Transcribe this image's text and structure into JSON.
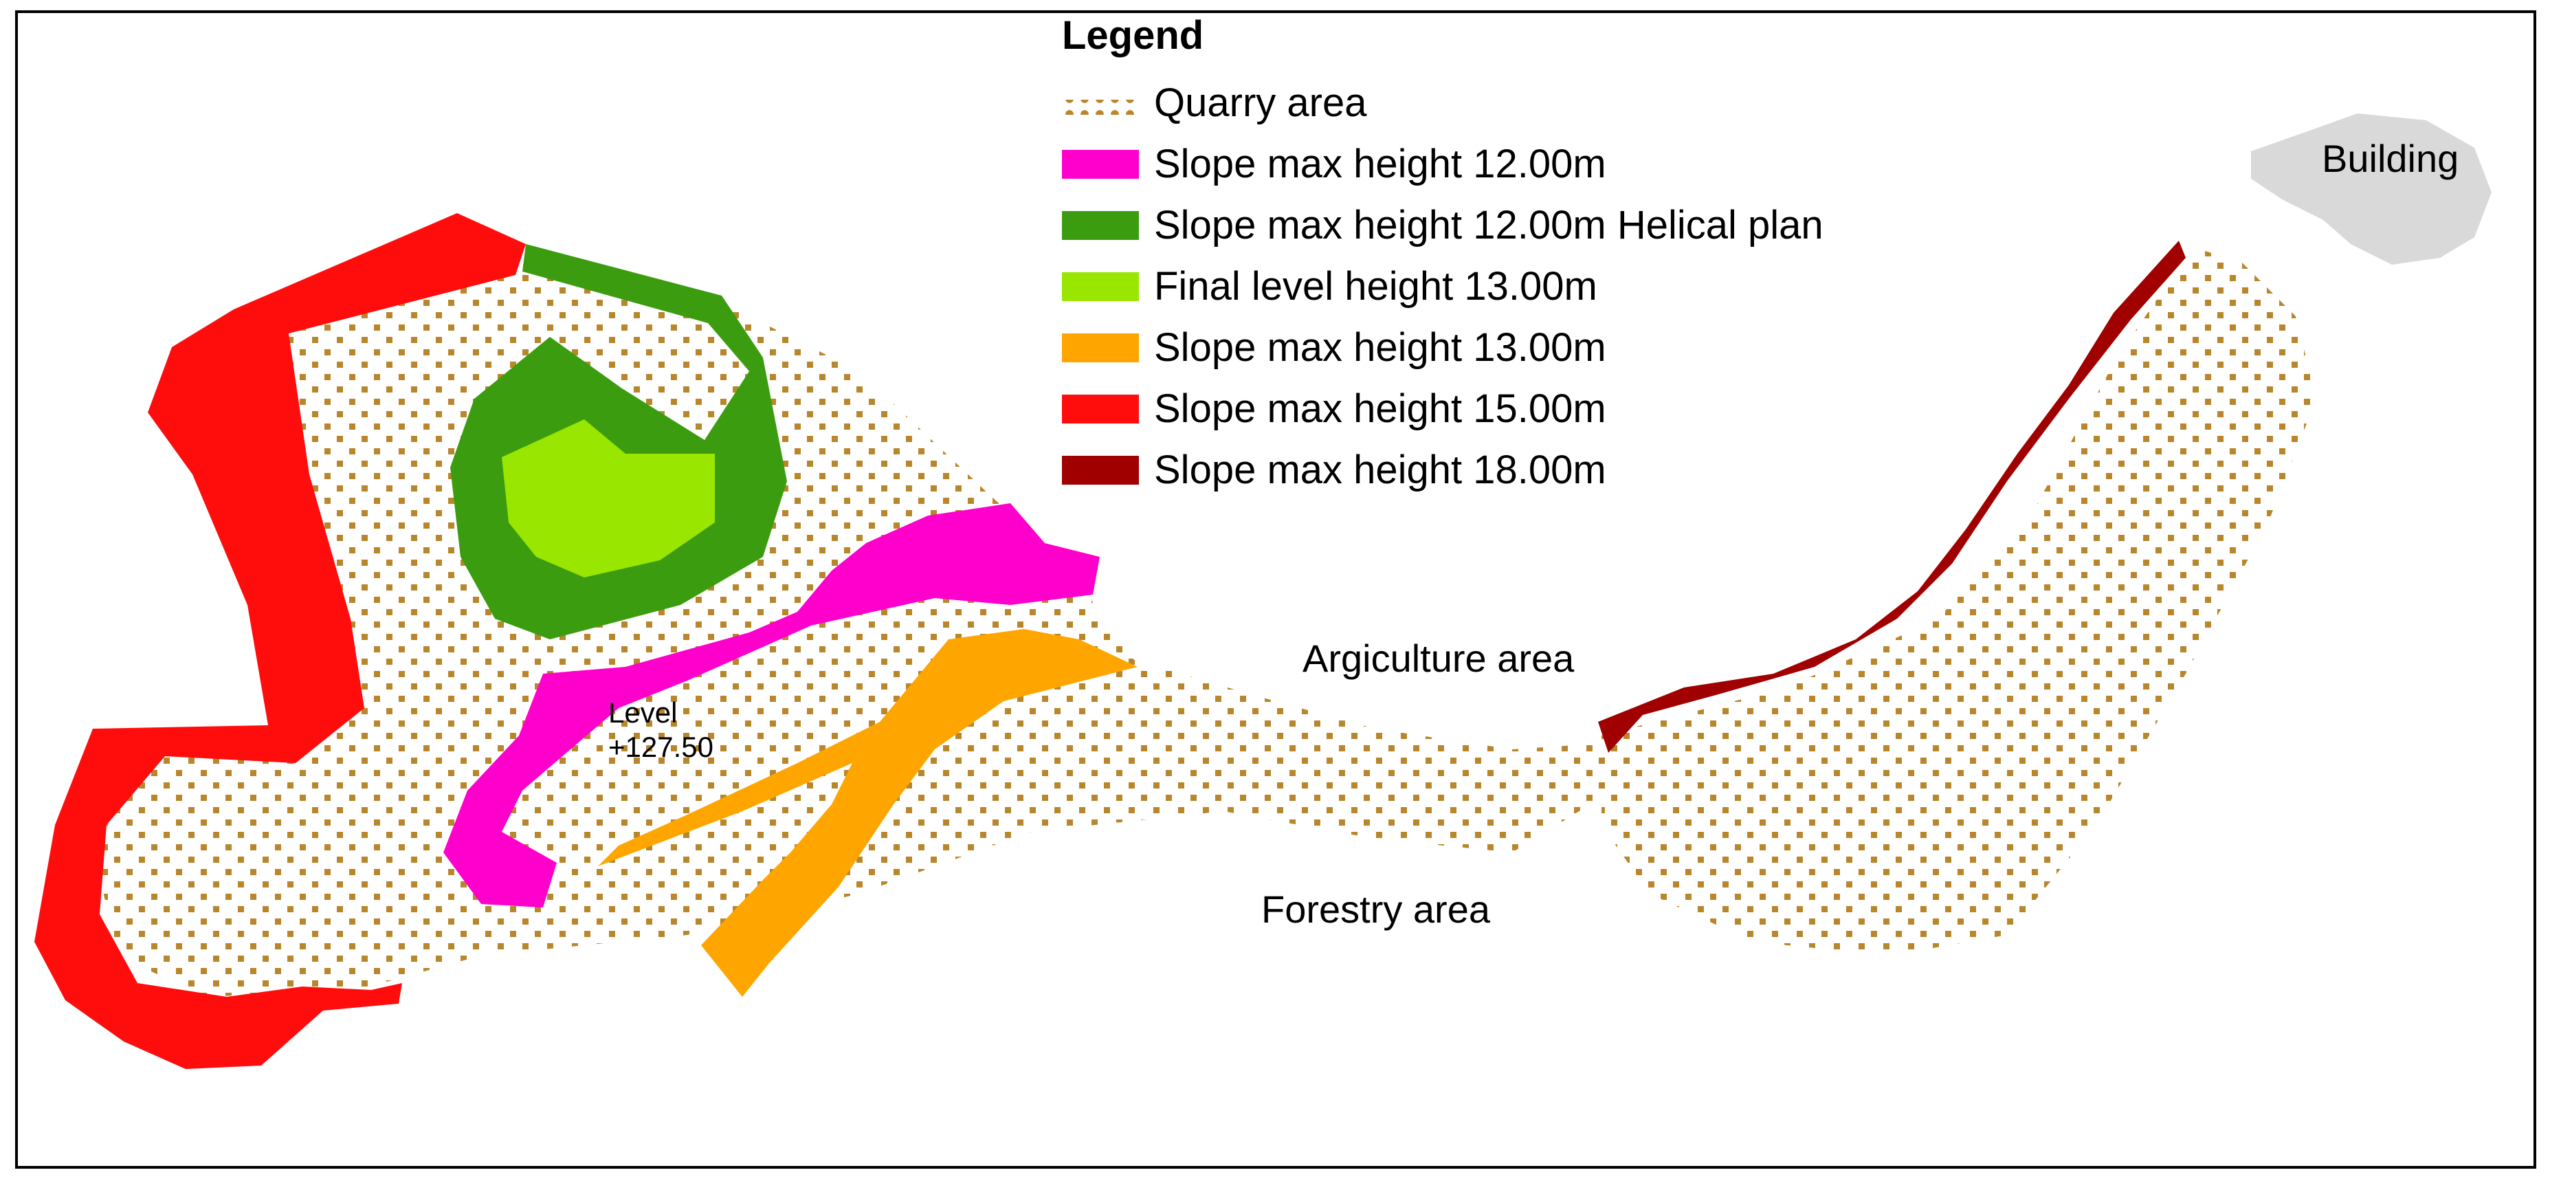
{
  "legend": {
    "title": "Legend",
    "items": [
      {
        "label": "Quarry area",
        "swatch": "dotted",
        "color": "#b8862b"
      },
      {
        "label": "Slope max height 12.00m",
        "color": "#ff00cc"
      },
      {
        "label": "Slope max height 12.00m Helical plan",
        "color": "#3c9c10"
      },
      {
        "label": "Final level height 13.00m",
        "color": "#99e600"
      },
      {
        "label": "Slope max height 13.00m",
        "color": "#ffa500"
      },
      {
        "label": "Slope max height 15.00m",
        "color": "#ff0d0d"
      },
      {
        "label": "Slope max height 18.00m",
        "color": "#a00000"
      }
    ]
  },
  "labels": {
    "building": "Building",
    "agriculture": "Argiculture area",
    "forestry": "Forestry area",
    "level": "Level\n+127.50"
  },
  "colors": {
    "quarry_dot": "#b8862b",
    "building": "#d9d9d9",
    "frame": "#000000"
  }
}
